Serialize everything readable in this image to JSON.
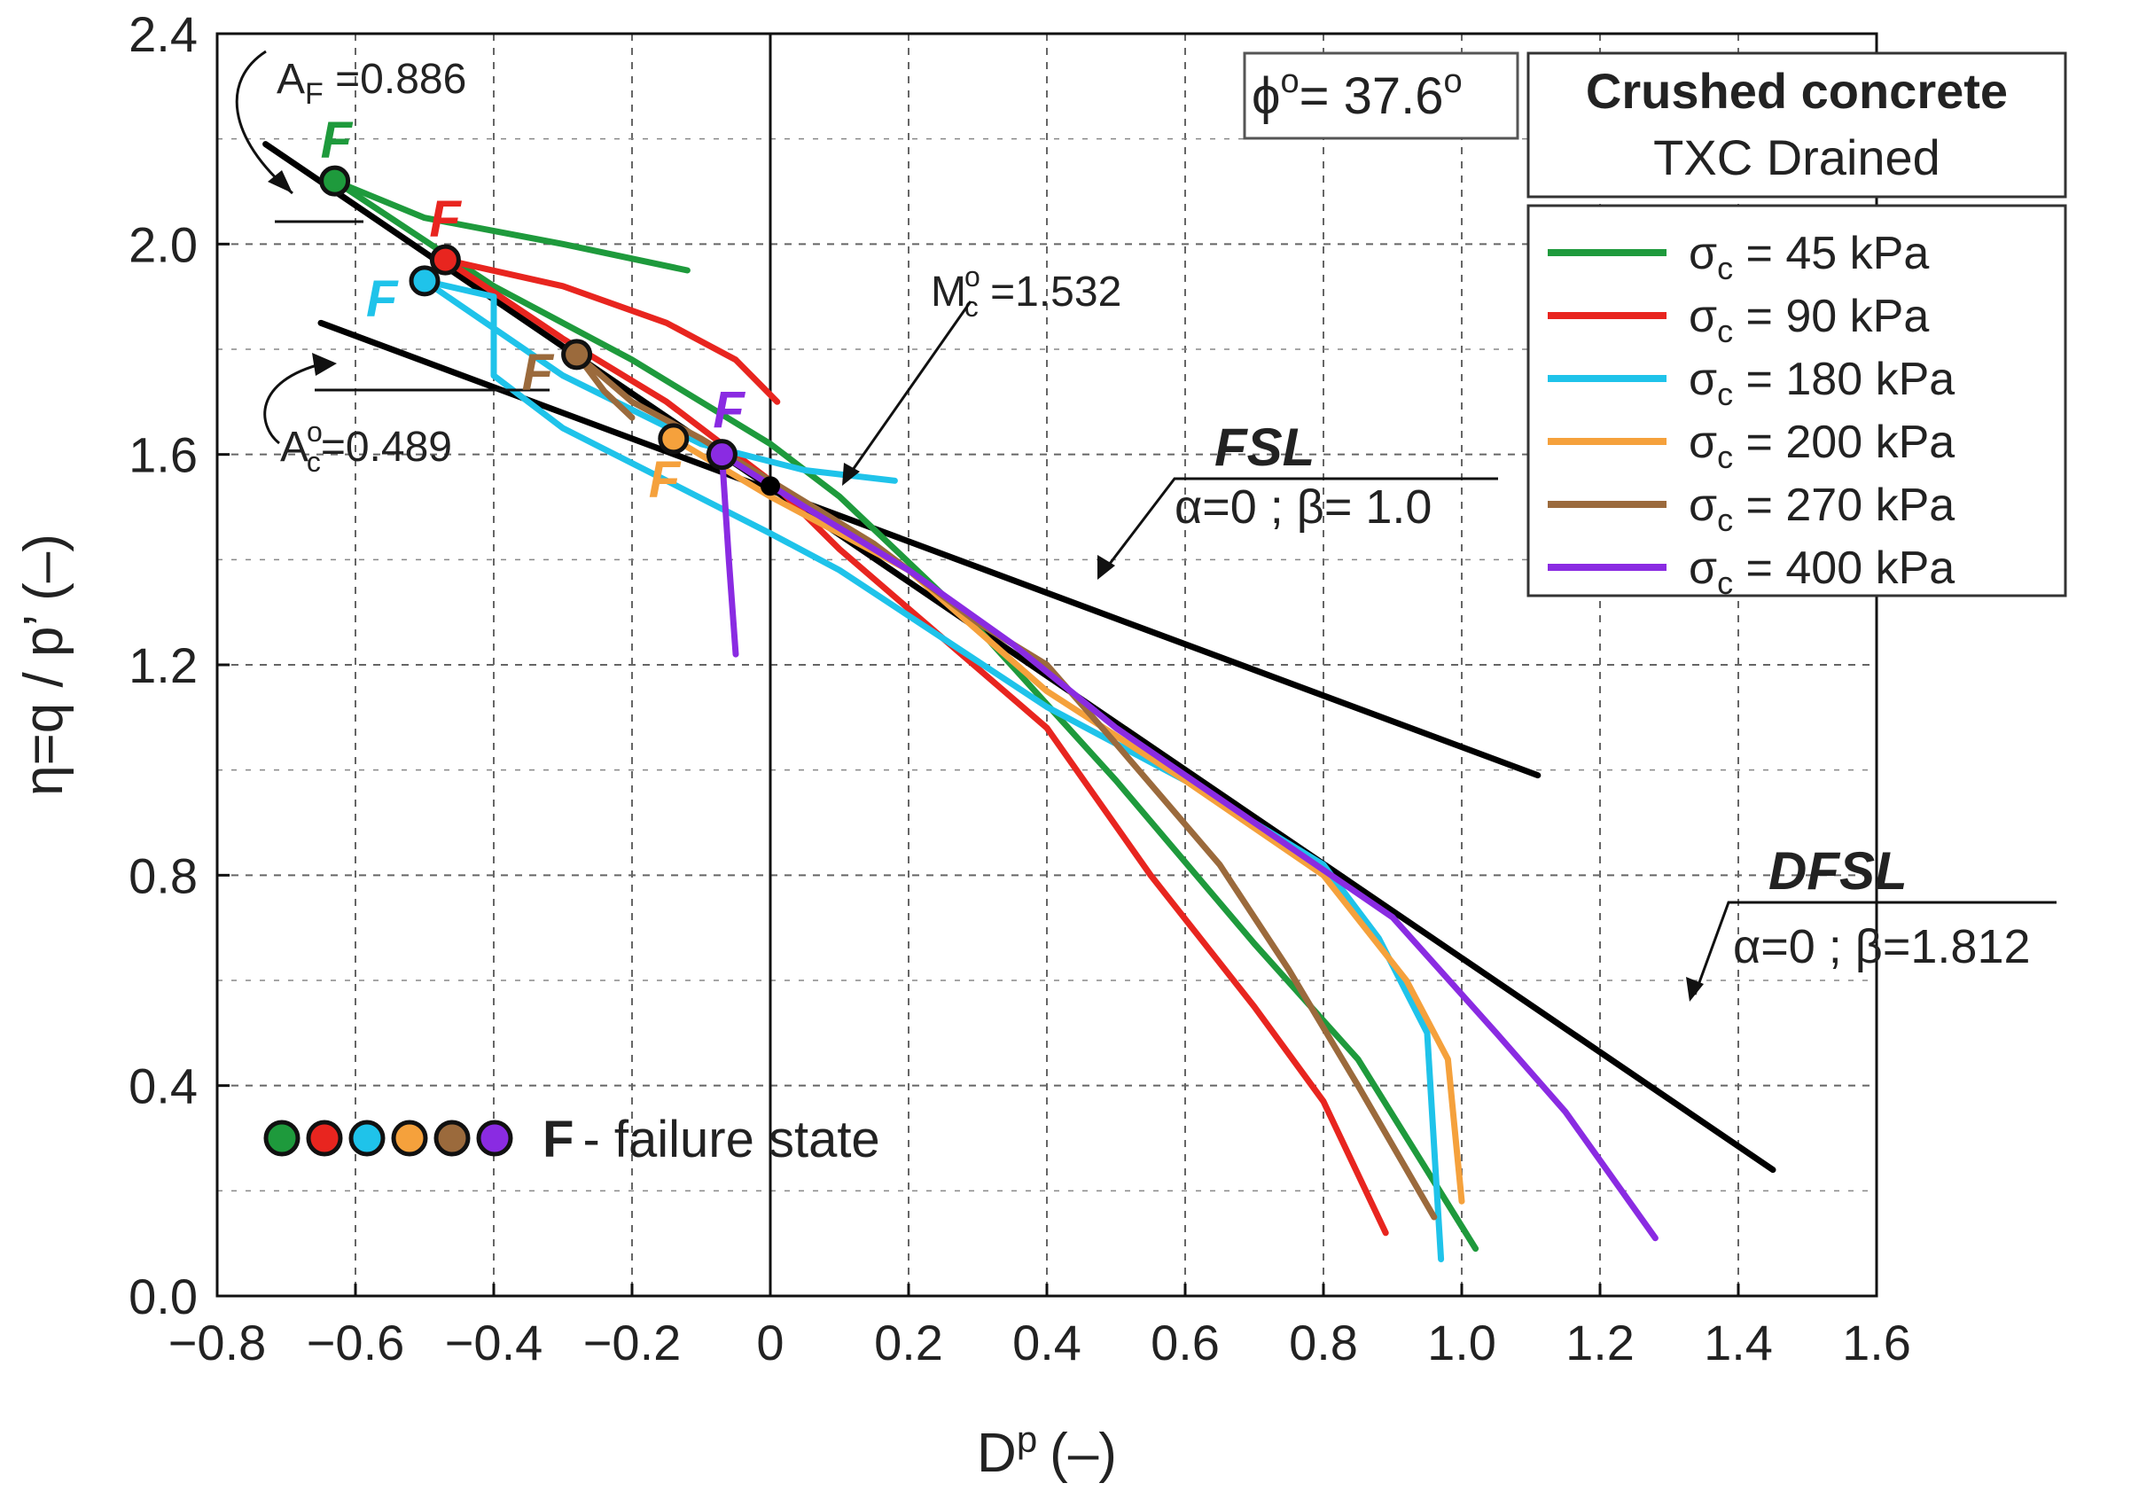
{
  "chart_data": {
    "type": "line",
    "xlabel_main": "D",
    "xlabel_sup": "p",
    "xlabel_unit": "(–)",
    "ylabel": "η=q / p’ (–)",
    "xlim": [
      -0.8,
      1.6
    ],
    "ylim": [
      0,
      2.4
    ],
    "x_ticks": [
      -0.8,
      -0.6,
      -0.4,
      -0.2,
      0,
      0.2,
      0.4,
      0.6,
      0.8,
      1.0,
      1.2,
      1.4,
      1.6
    ],
    "x_tick_labels": [
      "−0.8",
      "−0.6",
      "−0.4",
      "−0.2",
      "0",
      "0.2",
      "0.4",
      "0.6",
      "0.8",
      "1.0",
      "1.2",
      "1.4",
      "1.6"
    ],
    "y_ticks": [
      0,
      0.4,
      0.8,
      1.2,
      1.6,
      2.0,
      2.4
    ],
    "y_tick_labels": [
      "0.0",
      "0.4",
      "0.8",
      "1.2",
      "1.6",
      "2.0",
      "2.4"
    ],
    "grid": true,
    "title_box": {
      "line1": "Crushed concrete",
      "line2": "TXC Drained"
    },
    "phi_box": {
      "symbol": "ϕ",
      "sup": "o",
      "text": "= 37.6",
      "sup2": "o"
    },
    "series": [
      {
        "name": "σc = 45 kPa",
        "sym": "σ",
        "sub": "c",
        "rest": " = 45 kPa",
        "color": "#1e9a3c",
        "points": [
          [
            -0.63,
            2.12
          ],
          [
            -0.5,
            2.05
          ],
          [
            -0.3,
            2.0
          ],
          [
            -0.12,
            1.95
          ]
        ],
        "points2": [
          [
            -0.63,
            2.12
          ],
          [
            -0.4,
            1.92
          ],
          [
            -0.2,
            1.78
          ],
          [
            0,
            1.62
          ],
          [
            0.1,
            1.52
          ],
          [
            0.3,
            1.27
          ],
          [
            0.5,
            0.98
          ],
          [
            0.7,
            0.67
          ],
          [
            0.85,
            0.45
          ],
          [
            1.02,
            0.09
          ]
        ],
        "failure": [
          -0.63,
          2.12
        ]
      },
      {
        "name": "σc = 90 kPa",
        "sym": "σ",
        "sub": "c",
        "rest": " = 90 kPa",
        "color": "#e8251f",
        "points": [
          [
            -0.47,
            1.97
          ],
          [
            -0.3,
            1.92
          ],
          [
            -0.15,
            1.85
          ],
          [
            -0.05,
            1.78
          ],
          [
            -0.02,
            1.74
          ],
          [
            0.01,
            1.7
          ]
        ],
        "points2": [
          [
            -0.47,
            1.97
          ],
          [
            -0.3,
            1.82
          ],
          [
            -0.15,
            1.7
          ],
          [
            0,
            1.55
          ],
          [
            0.1,
            1.42
          ],
          [
            0.25,
            1.25
          ],
          [
            0.4,
            1.08
          ],
          [
            0.55,
            0.8
          ],
          [
            0.7,
            0.55
          ],
          [
            0.8,
            0.37
          ],
          [
            0.89,
            0.12
          ]
        ],
        "failure": [
          -0.47,
          1.97
        ]
      },
      {
        "name": "σc = 180 kPa",
        "sym": "σ",
        "sub": "c",
        "rest": " = 180 kPa",
        "color": "#1fc3ea",
        "points": [
          [
            -0.5,
            1.93
          ],
          [
            -0.4,
            1.9
          ],
          [
            -0.4,
            1.75
          ],
          [
            -0.3,
            1.65
          ],
          [
            -0.15,
            1.55
          ],
          [
            0,
            1.45
          ],
          [
            0.1,
            1.38
          ],
          [
            0.25,
            1.25
          ],
          [
            0.4,
            1.12
          ],
          [
            0.6,
            0.98
          ],
          [
            0.8,
            0.82
          ],
          [
            0.88,
            0.68
          ],
          [
            0.95,
            0.5
          ],
          [
            0.97,
            0.07
          ]
        ],
        "points2": [
          [
            -0.5,
            1.93
          ],
          [
            -0.3,
            1.75
          ],
          [
            -0.1,
            1.62
          ],
          [
            0.05,
            1.57
          ],
          [
            0.18,
            1.55
          ]
        ],
        "failure": [
          -0.5,
          1.93
        ]
      },
      {
        "name": "σc = 200 kPa",
        "sym": "σ",
        "sub": "c",
        "rest": " = 200 kPa",
        "color": "#f5a13c",
        "points": [
          [
            -0.14,
            1.63
          ],
          [
            0,
            1.52
          ],
          [
            0.2,
            1.38
          ],
          [
            0.4,
            1.15
          ],
          [
            0.6,
            0.98
          ],
          [
            0.8,
            0.8
          ],
          [
            0.92,
            0.6
          ],
          [
            0.98,
            0.45
          ],
          [
            1.0,
            0.18
          ]
        ],
        "points2": [],
        "failure": [
          -0.14,
          1.63
        ]
      },
      {
        "name": "σc = 270 kPa",
        "sym": "σ",
        "sub": "c",
        "rest": " = 270 kPa",
        "color": "#9b6a3c",
        "points": [
          [
            -0.28,
            1.79
          ],
          [
            -0.2,
            1.7
          ],
          [
            -0.1,
            1.63
          ],
          [
            0,
            1.55
          ],
          [
            0.15,
            1.43
          ],
          [
            0.3,
            1.28
          ],
          [
            0.4,
            1.2
          ],
          [
            0.5,
            1.05
          ],
          [
            0.65,
            0.82
          ],
          [
            0.75,
            0.62
          ],
          [
            0.85,
            0.4
          ],
          [
            0.96,
            0.15
          ]
        ],
        "points2": [
          [
            -0.28,
            1.79
          ],
          [
            -0.24,
            1.72
          ],
          [
            -0.2,
            1.67
          ]
        ],
        "failure": [
          -0.28,
          1.79
        ]
      },
      {
        "name": "σc = 400 kPa",
        "sym": "σ",
        "sub": "c",
        "rest": " = 400 kPa",
        "color": "#8a2be2",
        "points": [
          [
            -0.07,
            1.6
          ],
          [
            0.05,
            1.5
          ],
          [
            0.2,
            1.38
          ],
          [
            0.35,
            1.24
          ],
          [
            0.5,
            1.08
          ],
          [
            0.7,
            0.9
          ],
          [
            0.9,
            0.72
          ],
          [
            1.05,
            0.5
          ],
          [
            1.15,
            0.35
          ],
          [
            1.28,
            0.11
          ]
        ],
        "points2": [
          [
            -0.07,
            1.6
          ],
          [
            -0.06,
            1.4
          ],
          [
            -0.05,
            1.22
          ]
        ],
        "failure": [
          -0.07,
          1.6
        ]
      }
    ],
    "reference_lines": [
      {
        "name": "FSL",
        "label": "FSL",
        "params": "α=0 ; β= 1.0",
        "p1": [
          -0.65,
          1.85
        ],
        "p2": [
          1.11,
          0.99
        ]
      },
      {
        "name": "DFSL",
        "label": "DFSL",
        "params": "α=0 ; β=1.812",
        "p1": [
          -0.73,
          2.19
        ],
        "p2": [
          1.45,
          0.24
        ]
      }
    ],
    "annotations": {
      "af": {
        "base": "A",
        "sub": "F",
        "rest": " =0.886"
      },
      "ac": {
        "base": "A",
        "sub": "c",
        "sup": "o",
        "rest": "=0.489"
      },
      "mc": {
        "base": "M",
        "sub": "c",
        "sup": "o",
        "rest": " =1.532"
      },
      "failure_legend": "F -  failure state",
      "failure_letter": "F"
    },
    "intersection_point": [
      0,
      1.54
    ]
  }
}
